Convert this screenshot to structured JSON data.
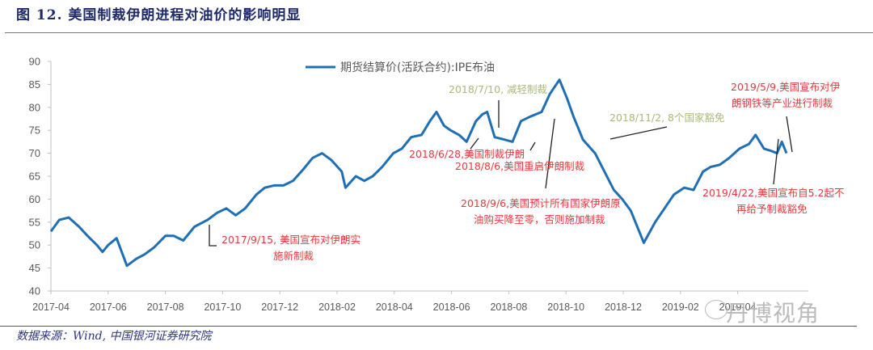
{
  "title": "图 12. 美国制裁伊朗进程对油价的影响明显",
  "source": "数据来源：Wind, 中国银河证券研究院",
  "watermark": "丹博视角",
  "colors": {
    "series": "#1f6fb5",
    "annotation_red": "#e8383d",
    "annotation_green": "#a9b97a",
    "title": "#1f2a6b",
    "axis": "#bfbfbf"
  },
  "chart_data": {
    "type": "line",
    "title": "图 12. 美国制裁伊朗进程对油价的影响明显",
    "xlabel": "",
    "ylabel": "",
    "ylim": [
      40,
      90
    ],
    "yticks": [
      40,
      45,
      50,
      55,
      60,
      65,
      70,
      75,
      80,
      85,
      90
    ],
    "xticks": [
      "2017-04",
      "2017-06",
      "2017-08",
      "2017-10",
      "2017-12",
      "2018-02",
      "2018-04",
      "2018-06",
      "2018-08",
      "2018-10",
      "2018-12",
      "2019-02",
      "2019-04"
    ],
    "grid": false,
    "legend": {
      "position": "top-center",
      "entries": [
        "期货结算价(活跃合约):IPE布油"
      ]
    },
    "series": [
      {
        "name": "期货结算价(活跃合约):IPE布油",
        "x": [
          "2017-04-01",
          "2017-04-10",
          "2017-04-20",
          "2017-05-01",
          "2017-05-10",
          "2017-05-20",
          "2017-05-26",
          "2017-06-01",
          "2017-06-10",
          "2017-06-21",
          "2017-07-01",
          "2017-07-10",
          "2017-07-20",
          "2017-08-01",
          "2017-08-10",
          "2017-08-20",
          "2017-09-01",
          "2017-09-15",
          "2017-09-25",
          "2017-10-05",
          "2017-10-15",
          "2017-10-25",
          "2017-11-06",
          "2017-11-15",
          "2017-11-25",
          "2017-12-05",
          "2017-12-15",
          "2017-12-26",
          "2018-01-05",
          "2018-01-15",
          "2018-01-25",
          "2018-02-05",
          "2018-02-09",
          "2018-02-20",
          "2018-03-01",
          "2018-03-10",
          "2018-03-20",
          "2018-04-01",
          "2018-04-10",
          "2018-04-20",
          "2018-05-01",
          "2018-05-10",
          "2018-05-17",
          "2018-05-25",
          "2018-06-01",
          "2018-06-10",
          "2018-06-18",
          "2018-06-28",
          "2018-07-05",
          "2018-07-10",
          "2018-07-18",
          "2018-07-28",
          "2018-08-06",
          "2018-08-15",
          "2018-08-25",
          "2018-09-06",
          "2018-09-15",
          "2018-09-25",
          "2018-10-03",
          "2018-10-10",
          "2018-10-20",
          "2018-11-02",
          "2018-11-12",
          "2018-11-22",
          "2018-12-01",
          "2018-12-10",
          "2018-12-24",
          "2019-01-05",
          "2019-01-15",
          "2019-01-25",
          "2019-02-05",
          "2019-02-15",
          "2019-02-25",
          "2019-03-05",
          "2019-03-15",
          "2019-03-25",
          "2019-04-05",
          "2019-04-15",
          "2019-04-22",
          "2019-05-01",
          "2019-05-09",
          "2019-05-15",
          "2019-05-20",
          "2019-05-25"
        ],
        "values": [
          53,
          55.5,
          56,
          54,
          52,
          50,
          48.5,
          50,
          51.5,
          45.5,
          47,
          48,
          49.5,
          52,
          52,
          51,
          54,
          55.5,
          57,
          58,
          56.5,
          58,
          61,
          62.5,
          63,
          63,
          64,
          66.5,
          69,
          70,
          68.5,
          66,
          62.5,
          65,
          64,
          65,
          67,
          70,
          71,
          73.5,
          74,
          77,
          79,
          76,
          75,
          74,
          72.5,
          77,
          78.5,
          79,
          73.5,
          73,
          72.5,
          77,
          78,
          79,
          83,
          86,
          82,
          78,
          73,
          70,
          66,
          62,
          60,
          57.5,
          50.5,
          55,
          58,
          61,
          62.5,
          62,
          66,
          67,
          67.5,
          69,
          71,
          72,
          74,
          71,
          70.5,
          70,
          72.5,
          70
        ]
      }
    ],
    "annotations": [
      {
        "date": "2017-09-15",
        "text": "2017/9/15, 美国宣布对伊朗实施新制裁",
        "color": "red"
      },
      {
        "date": "2018-06-28",
        "text": "2018/6/28,美国制裁伊朗",
        "color": "red"
      },
      {
        "date": "2018-07-10",
        "text": "2018/7/10, 减轻制裁",
        "color": "green"
      },
      {
        "date": "2018-08-06",
        "text": "2018/8/6,美国重启伊朗制裁",
        "color": "red"
      },
      {
        "date": "2018-09-06",
        "text": "2018/9/6,美国预计所有国家伊朗原油购买降至零，否则施加制裁",
        "color": "red"
      },
      {
        "date": "2018-11-02",
        "text": "2018/11/2, 8个国家豁免",
        "color": "green"
      },
      {
        "date": "2019-04-22",
        "text": "2019/4/22,美国宣布自5.2起不再给予制裁豁免",
        "color": "red"
      },
      {
        "date": "2019-05-09",
        "text": "2019/5/9,美国宣布对伊朗钢铁等产业进行制裁",
        "color": "red"
      }
    ]
  },
  "labels": {
    "legend": "期货结算价(活跃合约):IPE布油",
    "ann_2017_9_15_l1": "2017/9/15, 美国宣布对伊朗实",
    "ann_2017_9_15_l2": "施新制裁",
    "ann_2018_6_28": "2018/6/28,美国制裁伊朗",
    "ann_2018_7_10": "2018/7/10, 减轻制裁",
    "ann_2018_8_6": "2018/8/6,美国重启伊朗制裁",
    "ann_2018_9_6_l1": "2018/9/6,美国预计所有国家伊朗原",
    "ann_2018_9_6_l2": "油购买降至零，否则施加制裁",
    "ann_2018_11_2": "2018/11/2, 8个国家豁免",
    "ann_2019_4_22_l1": "2019/4/22,美国宣布自5.2起不",
    "ann_2019_4_22_l2": "再给予制裁豁免",
    "ann_2019_5_9_l1": "2019/5/9,美国宣布对伊",
    "ann_2019_5_9_l2": "朗钢铁等产业进行制裁"
  }
}
